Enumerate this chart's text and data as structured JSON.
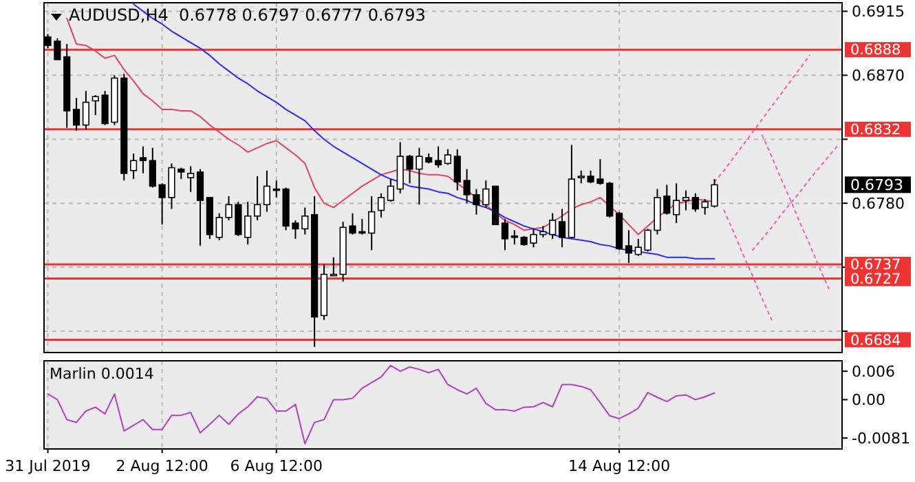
{
  "chart_data": [
    {
      "type": "candlestick",
      "title": "AUDUSD,H4  0.6778 0.6797 0.6777 0.6793",
      "categories": [
        null,
        null,
        null,
        null,
        null,
        null,
        null,
        null,
        null,
        null,
        null,
        null,
        null,
        null,
        null,
        null,
        null,
        null,
        null,
        null,
        null,
        null,
        null,
        null,
        null,
        null,
        null,
        null,
        null,
        null,
        null,
        null,
        null,
        null,
        null,
        null,
        null,
        null,
        null,
        null,
        null,
        null,
        null,
        null,
        null,
        null,
        null,
        null,
        null,
        null,
        null,
        null,
        null,
        null,
        null,
        null,
        null,
        null,
        null,
        null,
        null,
        null,
        null,
        null,
        null,
        null,
        null,
        null,
        null,
        null,
        null,
        null,
        null,
        null,
        null,
        null,
        null,
        null,
        null,
        null,
        null,
        null,
        null,
        null
      ],
      "ohlc": [
        [
          0.6897,
          0.6899,
          0.6889,
          0.6891
        ],
        [
          0.6894,
          0.6896,
          0.6881,
          0.6881
        ],
        [
          0.6883,
          0.6892,
          0.6833,
          0.6845
        ],
        [
          0.6846,
          0.6854,
          0.6831,
          0.6835
        ],
        [
          0.6835,
          0.6859,
          0.6832,
          0.6851
        ],
        [
          0.6852,
          0.6856,
          0.6842,
          0.6855
        ],
        [
          0.6856,
          0.6859,
          0.6835,
          0.6836
        ],
        [
          0.6837,
          0.687,
          0.6835,
          0.6868
        ],
        [
          0.6868,
          0.6871,
          0.6796,
          0.6801
        ],
        [
          0.6803,
          0.6815,
          0.6797,
          0.681
        ],
        [
          0.6812,
          0.682,
          0.6801,
          0.681
        ],
        [
          0.681,
          0.6819,
          0.6791,
          0.6792
        ],
        [
          0.6793,
          0.6794,
          0.6765,
          0.6784
        ],
        [
          0.6784,
          0.6808,
          0.6776,
          0.6805
        ],
        [
          0.6804,
          0.6805,
          0.6797,
          0.6802
        ],
        [
          0.6798,
          0.6806,
          0.6788,
          0.6801
        ],
        [
          0.6802,
          0.6804,
          0.675,
          0.6782
        ],
        [
          0.6784,
          0.6784,
          0.6755,
          0.6758
        ],
        [
          0.6756,
          0.6773,
          0.6754,
          0.677
        ],
        [
          0.677,
          0.6785,
          0.6768,
          0.6779
        ],
        [
          0.6779,
          0.6781,
          0.6757,
          0.6758
        ],
        [
          0.6756,
          0.6781,
          0.6751,
          0.6771
        ],
        [
          0.6771,
          0.6799,
          0.6768,
          0.6779
        ],
        [
          0.6779,
          0.6803,
          0.6774,
          0.6792
        ],
        [
          0.679,
          0.6796,
          0.6784,
          0.6789
        ],
        [
          0.679,
          0.6791,
          0.6761,
          0.6764
        ],
        [
          0.6766,
          0.6768,
          0.6755,
          0.6762
        ],
        [
          0.6762,
          0.6777,
          0.6758,
          0.6771
        ],
        [
          0.6772,
          0.6785,
          0.6679,
          0.67
        ],
        [
          0.6701,
          0.6737,
          0.6698,
          0.673
        ],
        [
          0.6729,
          0.6742,
          0.6729,
          0.673
        ],
        [
          0.673,
          0.6767,
          0.6725,
          0.6763
        ],
        [
          0.6764,
          0.6773,
          0.6758,
          0.6759
        ],
        [
          0.676,
          0.6769,
          0.6758,
          0.6759
        ],
        [
          0.6759,
          0.6785,
          0.6747,
          0.6774
        ],
        [
          0.6775,
          0.6787,
          0.677,
          0.6784
        ],
        [
          0.6782,
          0.6797,
          0.6781,
          0.6792
        ],
        [
          0.679,
          0.6823,
          0.6787,
          0.6813
        ],
        [
          0.6813,
          0.6814,
          0.6794,
          0.6804
        ],
        [
          0.6804,
          0.6819,
          0.6779,
          0.6813
        ],
        [
          0.6812,
          0.6815,
          0.6808,
          0.6809
        ],
        [
          0.681,
          0.682,
          0.6805,
          0.6807
        ],
        [
          0.6808,
          0.6818,
          0.6807,
          0.6814
        ],
        [
          0.6813,
          0.6818,
          0.6789,
          0.6795
        ],
        [
          0.6796,
          0.6804,
          0.678,
          0.6786
        ],
        [
          0.6786,
          0.679,
          0.6772,
          0.6779
        ],
        [
          0.6779,
          0.6796,
          0.6777,
          0.679
        ],
        [
          0.6792,
          0.6792,
          0.6765,
          0.6765
        ],
        [
          0.6766,
          0.6769,
          0.6747,
          0.6755
        ],
        [
          0.6757,
          0.6761,
          0.6751,
          0.6756
        ],
        [
          0.6756,
          0.6757,
          0.675,
          0.6751
        ],
        [
          0.6752,
          0.6762,
          0.6749,
          0.6758
        ],
        [
          0.6758,
          0.6764,
          0.6756,
          0.676
        ],
        [
          0.6758,
          0.6773,
          0.6755,
          0.6768
        ],
        [
          0.6767,
          0.6776,
          0.6749,
          0.6756
        ],
        [
          0.6756,
          0.6821,
          0.6755,
          0.6797
        ],
        [
          0.6798,
          0.6803,
          0.6794,
          0.6799
        ],
        [
          0.6799,
          0.6803,
          0.6794,
          0.6795
        ],
        [
          0.6797,
          0.6811,
          0.6793,
          0.6794
        ],
        [
          0.6794,
          0.6795,
          0.677,
          0.6771
        ],
        [
          0.6773,
          0.6774,
          0.6747,
          0.6748
        ],
        [
          0.675,
          0.6761,
          0.6738,
          0.6745
        ],
        [
          0.6744,
          0.6755,
          0.6743,
          0.6749
        ],
        [
          0.6747,
          0.6762,
          0.6746,
          0.6761
        ],
        [
          0.6761,
          0.679,
          0.6758,
          0.6784
        ],
        [
          0.6785,
          0.6793,
          0.6772,
          0.6773
        ],
        [
          0.6772,
          0.6794,
          0.6766,
          0.6782
        ],
        [
          0.6782,
          0.6789,
          0.6775,
          0.6784
        ],
        [
          0.6784,
          0.6787,
          0.6774,
          0.6776
        ],
        [
          0.6777,
          0.6783,
          0.6772,
          0.6781
        ],
        [
          0.6778,
          0.6797,
          0.6777,
          0.6793
        ],
        null,
        null,
        null,
        null,
        null,
        null,
        null,
        null,
        null,
        null,
        null,
        null,
        null
      ],
      "series": [
        {
          "type": "line",
          "color": "#e8415f",
          "values": [
            null,
            null,
            0.691,
            0.6892,
            0.6891,
            0.6887,
            0.6882,
            0.6884,
            0.6874,
            0.6866,
            0.6857,
            0.6852,
            0.6846,
            0.6846,
            0.6845,
            0.6845,
            0.6841,
            0.6835,
            0.683,
            0.6825,
            0.6821,
            0.6816,
            0.6819,
            0.6822,
            0.6824,
            0.6819,
            0.6814,
            0.6808,
            0.6791,
            0.678,
            0.6777,
            0.6782,
            0.6787,
            0.6792,
            0.6796,
            0.68,
            0.6802,
            0.6804,
            0.6803,
            0.6801,
            0.68,
            0.68,
            0.6799,
            0.6794,
            0.6789,
            0.6784,
            0.6779,
            0.6773,
            0.6768,
            0.6765,
            0.6761,
            0.6762,
            0.6763,
            0.6767,
            0.6771,
            0.6776,
            0.6779,
            0.6781,
            0.6784,
            0.6778,
            0.6772,
            0.6765,
            0.6758,
            0.6764,
            0.677,
            0.6775,
            0.678,
            0.6781,
            0.6783,
            0.6782,
            0.6781,
            null,
            null,
            null,
            null,
            null,
            null,
            null,
            null,
            null,
            null,
            null,
            null,
            null
          ]
        },
        {
          "type": "line",
          "color": "#2a2aff",
          "values": [
            null,
            null,
            null,
            null,
            null,
            null,
            null,
            null,
            null,
            0.692,
            0.6915,
            0.691,
            0.6906,
            0.6901,
            0.6897,
            0.6893,
            0.6889,
            0.6884,
            0.6878,
            0.6873,
            0.6868,
            0.6864,
            0.6859,
            0.6855,
            0.6851,
            0.6846,
            0.6842,
            0.6838,
            0.6831,
            0.6825,
            0.682,
            0.6816,
            0.6812,
            0.6808,
            0.6804,
            0.68,
            0.6797,
            0.6795,
            0.6792,
            0.6791,
            0.679,
            0.6788,
            0.6787,
            0.6784,
            0.6782,
            0.6779,
            0.6777,
            0.6774,
            0.677,
            0.6767,
            0.6764,
            0.6762,
            0.676,
            0.6758,
            0.6756,
            0.6755,
            0.6754,
            0.6753,
            0.6751,
            0.675,
            0.6748,
            0.6747,
            0.6746,
            0.6745,
            0.6744,
            0.6742,
            0.6742,
            0.6742,
            0.6741,
            0.6741,
            0.6741,
            null,
            null,
            null,
            null,
            null,
            null,
            null,
            null,
            null,
            null,
            null,
            null,
            null
          ]
        },
        {
          "type": "line",
          "color": "#ff5aa8",
          "line_style": "dotted",
          "values": [
            null,
            null,
            null,
            null,
            null,
            null,
            null,
            null,
            null,
            null,
            null,
            null,
            null,
            null,
            null,
            null,
            null,
            null,
            null,
            null,
            null,
            null,
            null,
            null,
            null,
            null,
            null,
            null,
            null,
            null,
            null,
            null,
            null,
            null,
            null,
            null,
            null,
            null,
            null,
            null,
            null,
            null,
            null,
            null,
            null,
            null,
            null,
            null,
            null,
            null,
            null,
            null,
            null,
            null,
            null,
            null,
            null,
            null,
            null,
            null,
            null,
            null,
            null,
            null,
            null,
            null,
            null,
            null,
            null,
            null,
            0.6795,
            0.6803,
            0.6812,
            0.6821,
            0.683,
            0.6839,
            0.6848,
            0.6857,
            0.6866,
            0.6875,
            0.6884,
            null,
            null,
            null
          ]
        },
        {
          "type": "line",
          "color": "#ff5aa8",
          "line_style": "dotted",
          "values": [
            null,
            null,
            null,
            null,
            null,
            null,
            null,
            null,
            null,
            null,
            null,
            null,
            null,
            null,
            null,
            null,
            null,
            null,
            null,
            null,
            null,
            null,
            null,
            null,
            null,
            null,
            null,
            null,
            null,
            null,
            null,
            null,
            null,
            null,
            null,
            null,
            null,
            null,
            null,
            null,
            null,
            null,
            null,
            null,
            null,
            null,
            null,
            null,
            null,
            null,
            null,
            null,
            null,
            null,
            null,
            null,
            null,
            null,
            null,
            null,
            null,
            null,
            null,
            null,
            null,
            null,
            null,
            null,
            null,
            null,
            null,
            0.6775,
            0.676,
            0.6744,
            0.6729,
            0.6713,
            0.6698,
            null,
            null,
            null,
            null,
            null,
            null,
            null
          ]
        },
        {
          "type": "line",
          "color": "#ff5aa8",
          "line_style": "dotted",
          "values": [
            null,
            null,
            null,
            null,
            null,
            null,
            null,
            null,
            null,
            null,
            null,
            null,
            null,
            null,
            null,
            null,
            null,
            null,
            null,
            null,
            null,
            null,
            null,
            null,
            null,
            null,
            null,
            null,
            null,
            null,
            null,
            null,
            null,
            null,
            null,
            null,
            null,
            null,
            null,
            null,
            null,
            null,
            null,
            null,
            null,
            null,
            null,
            null,
            null,
            null,
            null,
            null,
            null,
            null,
            null,
            null,
            null,
            null,
            null,
            null,
            null,
            null,
            null,
            null,
            null,
            null,
            null,
            null,
            null,
            null,
            null,
            null,
            null,
            null,
            null,
            0.6828,
            0.6813,
            0.6797,
            0.6782,
            0.6766,
            0.6751,
            0.6735,
            0.672,
            null
          ]
        },
        {
          "type": "line",
          "color": "#ff5aa8",
          "line_style": "dotted",
          "values": [
            null,
            null,
            null,
            null,
            null,
            null,
            null,
            null,
            null,
            null,
            null,
            null,
            null,
            null,
            null,
            null,
            null,
            null,
            null,
            null,
            null,
            null,
            null,
            null,
            null,
            null,
            null,
            null,
            null,
            null,
            null,
            null,
            null,
            null,
            null,
            null,
            null,
            null,
            null,
            null,
            null,
            null,
            null,
            null,
            null,
            null,
            null,
            null,
            null,
            null,
            null,
            null,
            null,
            null,
            null,
            null,
            null,
            null,
            null,
            null,
            null,
            null,
            null,
            null,
            null,
            null,
            null,
            null,
            null,
            null,
            null,
            null,
            null,
            null,
            0.6747,
            0.6755,
            0.6763,
            0.6772,
            0.678,
            0.6788,
            0.6797,
            0.6805,
            0.6813,
            0.6821
          ]
        }
      ],
      "ylim": [
        0.6675,
        0.6921
      ],
      "yticks": [
        0.6915,
        {
          "value": 0.687,
          "label": "0.6870"
        },
        {
          "value": 0.6825,
          "label": null
        },
        {
          "value": 0.678,
          "label": "0.6780"
        },
        {
          "value": 0.6735,
          "label": null
        },
        {
          "value": 0.669,
          "label": null
        }
      ],
      "grid": true,
      "tick_labels": "y",
      "ref_lines": [
        {
          "axis": "y",
          "value": 0.6888,
          "label": "0.6888",
          "color": "#ee3333"
        },
        {
          "axis": "y",
          "value": 0.6832,
          "label": "0.6832",
          "color": "#ee3333"
        },
        {
          "axis": "y",
          "value": 0.6737,
          "label": "0.6737",
          "color": "#ee3333"
        },
        {
          "axis": "y",
          "value": 0.6727,
          "label": "0.6727",
          "color": "#ee3333"
        },
        {
          "axis": "y",
          "value": 0.6684,
          "label": "0.6684",
          "color": "#ee3333"
        }
      ],
      "annotations": [
        "0.6793"
      ]
    },
    {
      "type": "line",
      "title": "Marlin 0.0014",
      "categories": [
        "31 Jul 2019",
        null,
        null,
        null,
        null,
        null,
        null,
        null,
        null,
        null,
        null,
        null,
        "2 Aug 12:00",
        null,
        null,
        null,
        null,
        null,
        null,
        null,
        null,
        null,
        null,
        null,
        "6 Aug 12:00",
        null,
        null,
        null,
        null,
        null,
        null,
        null,
        null,
        null,
        null,
        null,
        null,
        null,
        null,
        null,
        null,
        null,
        null,
        null,
        null,
        null,
        null,
        null,
        null,
        null,
        null,
        null,
        null,
        null,
        null,
        null,
        null,
        null,
        null,
        null,
        "14 Aug 12:00",
        null,
        null,
        null,
        null,
        null,
        null,
        null,
        null,
        null,
        null,
        null,
        null,
        null,
        null,
        null,
        null,
        null,
        null,
        null,
        null,
        null,
        null,
        null
      ],
      "series": [
        {
          "color": "#b23fc4",
          "values": [
            0.0012,
            0.0,
            -0.0042,
            -0.0048,
            -0.0024,
            -0.0016,
            -0.003,
            0.0012,
            -0.0066,
            -0.0054,
            -0.0042,
            -0.0063,
            -0.0063,
            -0.0033,
            -0.0033,
            -0.0027,
            -0.007,
            -0.0052,
            -0.0033,
            -0.0052,
            -0.003,
            -0.0015,
            0.0006,
            0.0002,
            -0.0024,
            -0.0024,
            -0.001,
            -0.0093,
            -0.0048,
            -0.0042,
            0.0,
            0.0,
            0.0003,
            0.0024,
            0.0036,
            0.0048,
            0.0072,
            0.006,
            0.0069,
            0.0064,
            0.0057,
            0.0064,
            0.0032,
            0.0021,
            0.0012,
            0.0024,
            -0.0008,
            -0.0021,
            -0.0021,
            -0.0024,
            -0.0016,
            -0.0015,
            -0.0006,
            -0.0015,
            0.0032,
            0.0032,
            0.0028,
            0.0021,
            -0.0006,
            -0.0034,
            -0.004,
            -0.003,
            -0.0018,
            0.0015,
            0.0005,
            -0.0004,
            0.0008,
            0.001,
            0.0,
            0.0006,
            0.0014,
            null,
            null,
            null,
            null,
            null,
            null,
            null,
            null,
            null,
            null,
            null,
            null,
            null
          ]
        }
      ],
      "ylim": [
        -0.0104,
        0.0082
      ],
      "yticks": [
        0.006,
        {
          "value": 0,
          "label": "0.00"
        },
        -0.0081
      ],
      "grid": "x"
    }
  ]
}
